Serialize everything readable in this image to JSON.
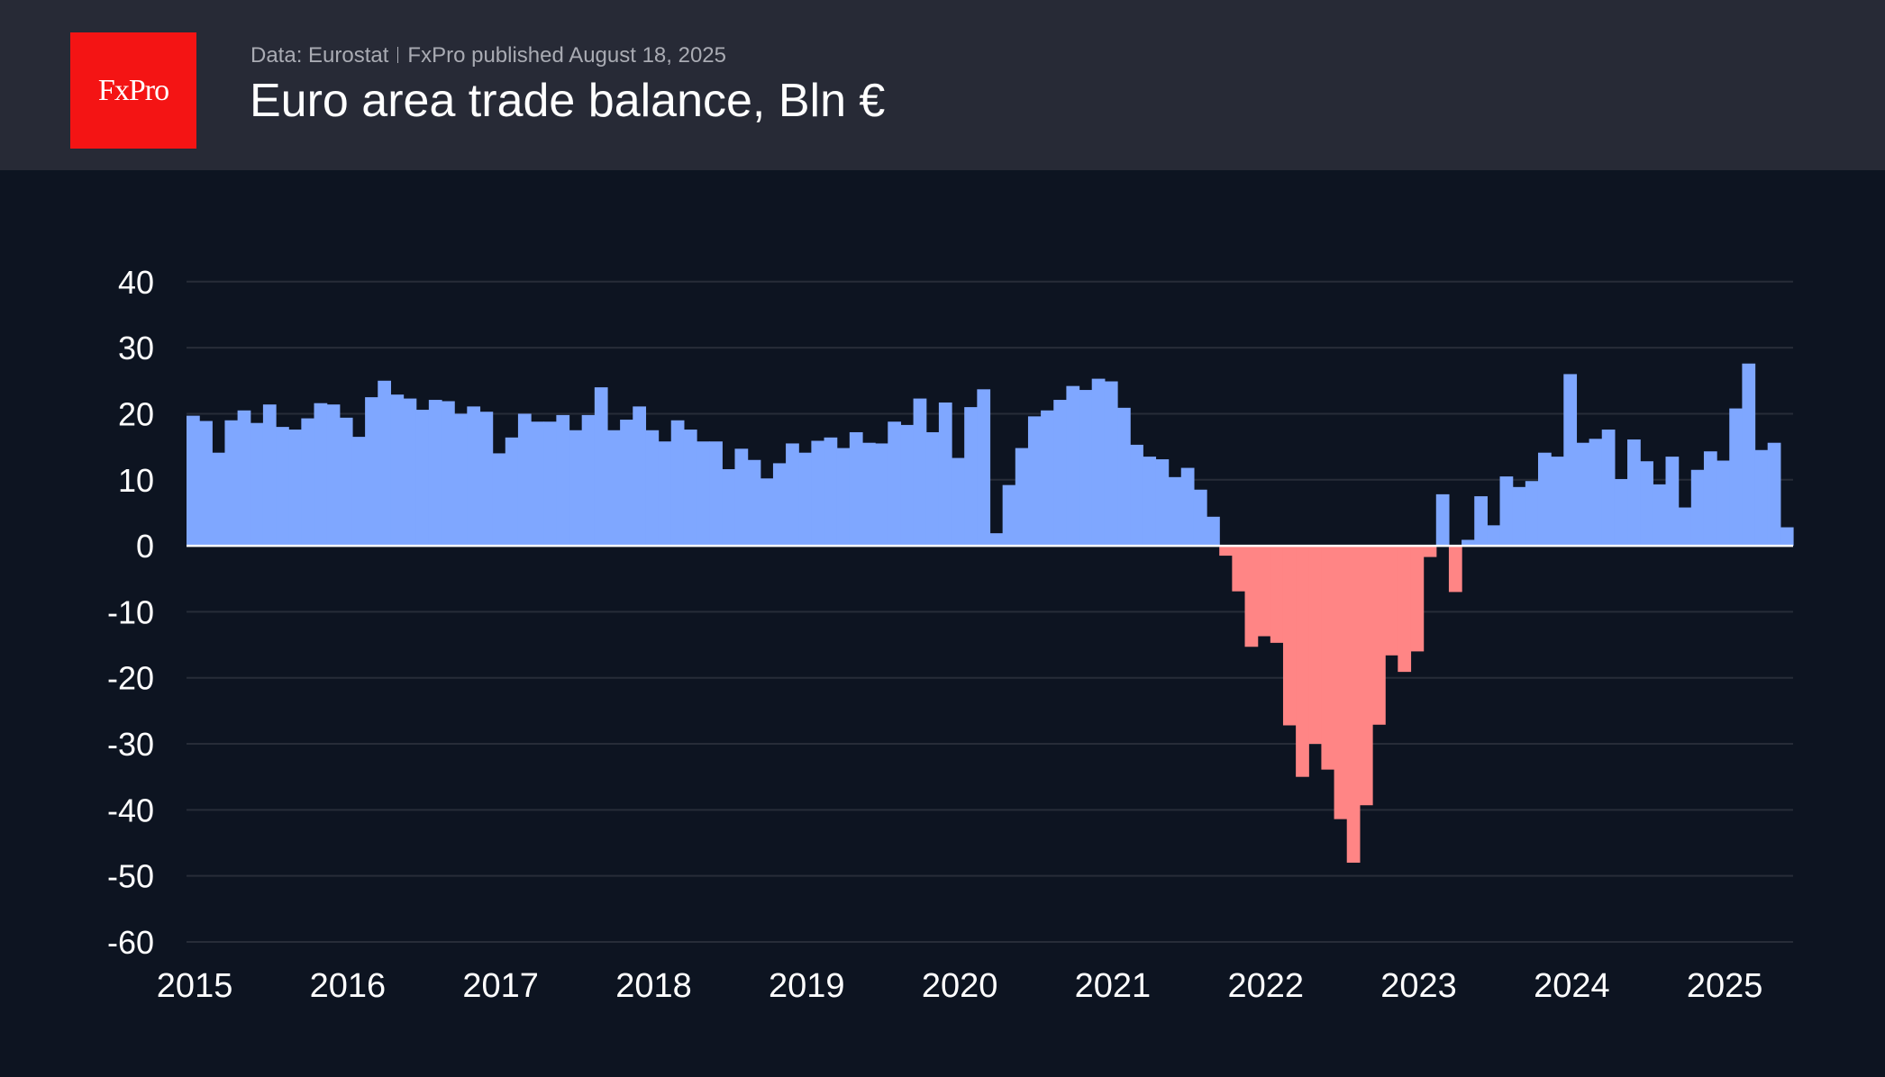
{
  "header": {
    "logo_text": "FxPro",
    "source": "Data: Eurostat",
    "published": "FxPro published August 18, 2025",
    "title": "Euro area trade balance, Bln €"
  },
  "colors": {
    "positive": "#7fa7ff",
    "negative": "#ff8585",
    "background": "#0d1421",
    "header": "#272a36",
    "logo": "#f41414"
  },
  "chart_data": {
    "type": "bar",
    "title": "Euro area trade balance, Bln €",
    "frequency": "monthly",
    "start": "2015-01",
    "end": "2025-06",
    "ylim": [
      -60,
      40
    ],
    "yticks": [
      40,
      30,
      20,
      10,
      0,
      -10,
      -20,
      -30,
      -40,
      -50,
      -60
    ],
    "xticks": [
      "2015",
      "2016",
      "2017",
      "2018",
      "2019",
      "2020",
      "2021",
      "2022",
      "2023",
      "2024",
      "2025"
    ],
    "grid": true,
    "values": [
      19.7,
      18.9,
      14.1,
      19.0,
      20.5,
      18.6,
      21.4,
      18.0,
      17.6,
      19.3,
      21.6,
      21.4,
      19.4,
      16.5,
      22.5,
      25.0,
      22.9,
      22.3,
      20.6,
      22.1,
      21.9,
      20.0,
      21.1,
      20.3,
      14.0,
      16.4,
      20.0,
      18.8,
      18.8,
      19.8,
      17.5,
      19.8,
      24.0,
      17.5,
      19.1,
      21.1,
      17.5,
      15.8,
      19.0,
      17.6,
      15.8,
      15.8,
      11.6,
      14.7,
      13.0,
      10.2,
      12.5,
      15.5,
      14.1,
      15.9,
      16.4,
      14.8,
      17.2,
      15.6,
      15.5,
      18.8,
      18.3,
      22.3,
      17.2,
      21.7,
      13.3,
      21.0,
      23.7,
      1.9,
      9.2,
      14.8,
      19.6,
      20.5,
      22.1,
      24.2,
      23.6,
      25.3,
      24.9,
      20.9,
      15.3,
      13.5,
      13.1,
      10.4,
      11.8,
      8.5,
      4.4,
      -1.5,
      -6.9,
      -15.3,
      -13.7,
      -14.7,
      -27.2,
      -35.0,
      -30.0,
      -33.9,
      -41.4,
      -48.0,
      -39.3,
      -27.1,
      -16.6,
      -19.1,
      -16.0,
      -1.7,
      7.8,
      -7.0,
      0.9,
      7.5,
      3.1,
      10.5,
      8.9,
      9.8,
      14.1,
      13.5,
      26.0,
      15.6,
      16.2,
      17.6,
      10.1,
      16.1,
      12.8,
      9.3,
      13.5,
      5.8,
      11.5,
      14.3,
      12.9,
      20.8,
      27.6,
      14.5,
      15.6,
      2.8
    ]
  }
}
